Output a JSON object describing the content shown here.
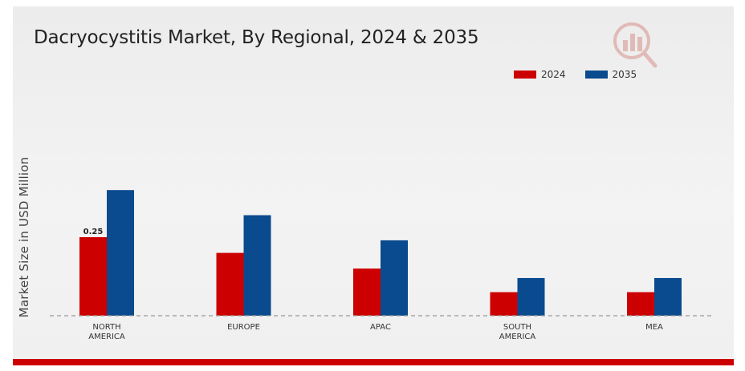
{
  "chart_data": {
    "type": "bar",
    "title": "Dacryocystitis Market, By Regional, 2024 & 2035",
    "ylabel": "Market Size in USD Million",
    "xlabel": "",
    "categories": [
      "NORTH\nAMERICA",
      "EUROPE",
      "APAC",
      "SOUTH\nAMERICA",
      "MEA"
    ],
    "series": [
      {
        "name": "2024",
        "color": "#cc0000",
        "values": [
          0.25,
          0.2,
          0.15,
          0.075,
          0.075
        ]
      },
      {
        "name": "2035",
        "color": "#0a4a8e",
        "values": [
          0.4,
          0.32,
          0.24,
          0.12,
          0.12
        ]
      }
    ],
    "data_labels": [
      {
        "series": 0,
        "index": 0,
        "text": "0.25"
      }
    ],
    "ylim": [
      0,
      0.5
    ],
    "grid": false,
    "legend_position": "top-right"
  },
  "logo_icon": "market-research-logo-icon"
}
